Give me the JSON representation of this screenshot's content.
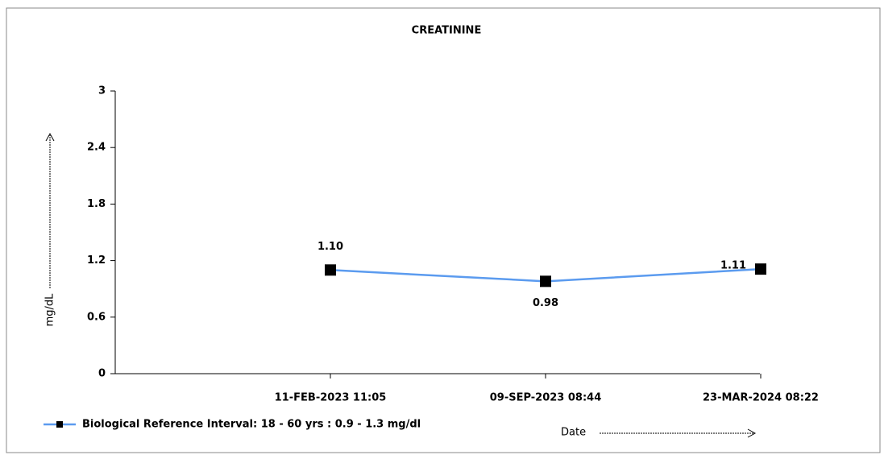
{
  "chart_data": {
    "type": "line",
    "title": "CREATININE",
    "y_label": "mg/dL",
    "x_label": "Date",
    "categories": [
      "11-FEB-2023 11:05",
      "09-SEP-2023 08:44",
      "23-MAR-2024 08:22"
    ],
    "series": [
      {
        "name": "Biological Reference Interval: 18 - 60 yrs : 0.9 - 1.3 mg/dl",
        "color": "#5b9bef",
        "values": [
          1.1,
          0.98,
          1.11
        ],
        "value_labels": [
          "1.10",
          "0.98",
          "1.11"
        ]
      }
    ],
    "ylim": [
      0,
      3
    ],
    "yticks": [
      0,
      0.6,
      1.2,
      1.8,
      2.4,
      3
    ]
  }
}
